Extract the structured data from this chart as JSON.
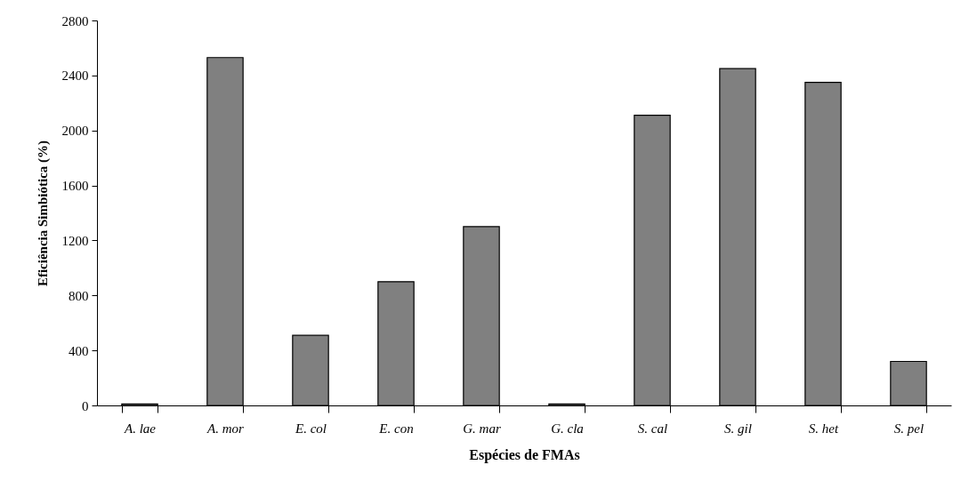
{
  "chart_data": {
    "type": "bar",
    "xlabel": "Espécies de FMAs",
    "ylabel": "Eficiência Simbiótica (%)",
    "categories": [
      "A. lae",
      "A. mor",
      "E. col",
      "E. con",
      "G. mar",
      "G. cla",
      "S. cal",
      "S. gil",
      "S. het",
      "S. pel"
    ],
    "values": [
      10,
      2530,
      510,
      900,
      1300,
      10,
      2110,
      2450,
      2350,
      320
    ],
    "color": "#808080",
    "ylim": [
      0,
      2800
    ],
    "yticks": [
      0,
      400,
      800,
      1200,
      1600,
      2000,
      2400,
      2800
    ],
    "grid": false
  }
}
